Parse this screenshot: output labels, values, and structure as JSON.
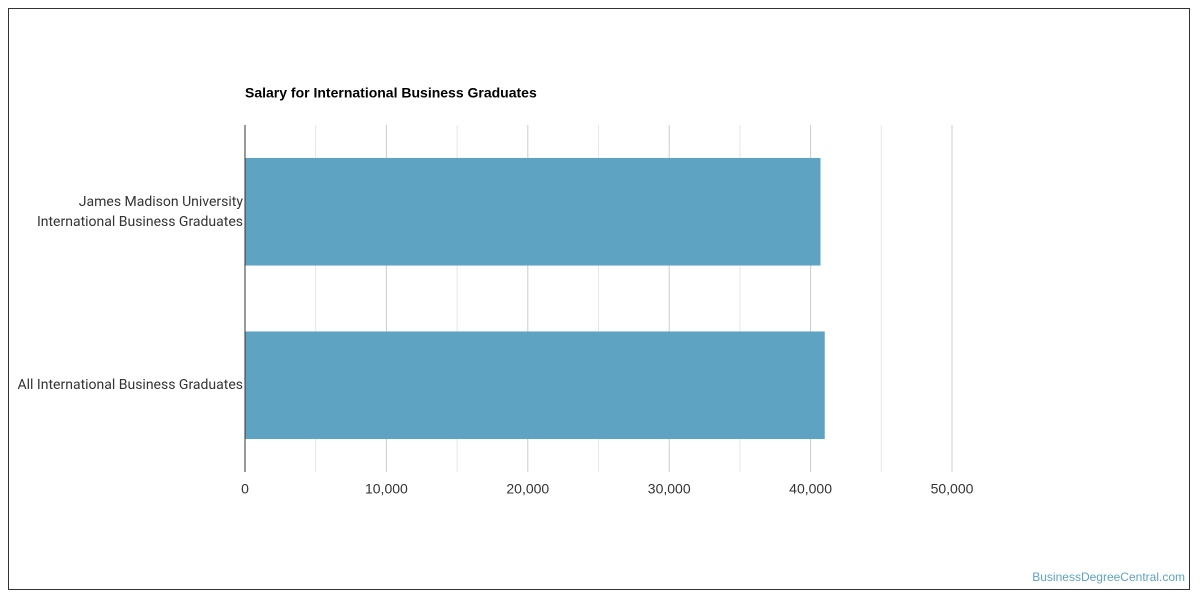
{
  "chart_data": {
    "type": "bar",
    "orientation": "horizontal",
    "title": "Salary for International Business Graduates",
    "categories": [
      "James Madison University International Business Graduates",
      "All International Business Graduates"
    ],
    "values": [
      40700,
      41000
    ],
    "color": "#5ea3c1",
    "xlim": [
      0,
      50000
    ],
    "xticks": [
      0,
      {
        "value": 10000,
        "label": "10,000"
      },
      {
        "value": 20000,
        "label": "20,000"
      },
      {
        "value": 30000,
        "label": "30,000"
      },
      {
        "value": 40000,
        "label": "40,000"
      },
      {
        "value": 50000,
        "label": "50,000"
      }
    ],
    "xminorticks": [
      5000,
      15000,
      25000,
      35000,
      45000
    ],
    "grid": true
  },
  "footer": {
    "source": "BusinessDegreeCentral.com"
  }
}
